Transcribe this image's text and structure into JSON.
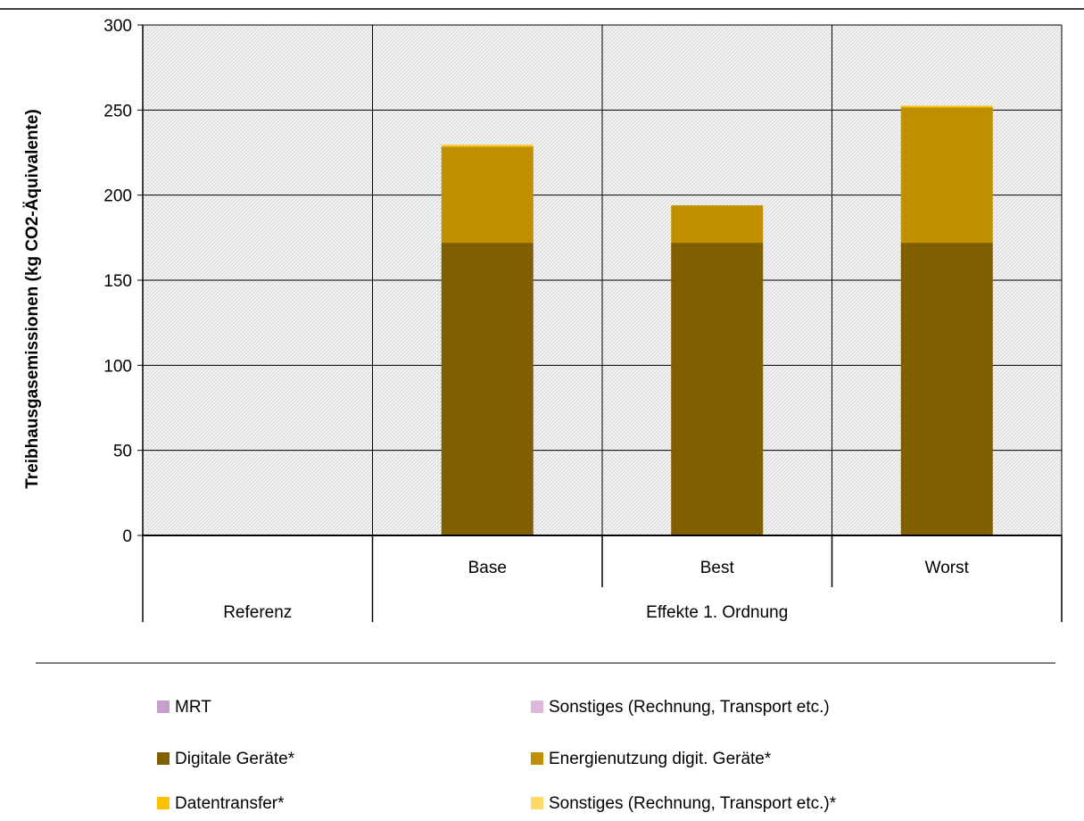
{
  "chart_data": {
    "type": "bar",
    "stacked": true,
    "title": "",
    "xlabel": "",
    "ylabel": "Treibhausgasemissionen (kg CO2-Äquivalente)",
    "ylim": [
      0,
      300
    ],
    "yticks": [
      0,
      50,
      100,
      150,
      200,
      250,
      300
    ],
    "grid": true,
    "legend_position": "bottom",
    "category_groups": [
      {
        "label": "Referenz",
        "categories": [
          ""
        ]
      },
      {
        "label": "Effekte 1. Ordnung",
        "categories": [
          "Base",
          "Best",
          "Worst"
        ]
      }
    ],
    "categories": [
      "",
      "Base",
      "Best",
      "Worst"
    ],
    "series": [
      {
        "name": "MRT",
        "color": "#c79fc9",
        "values": [
          0,
          0,
          0,
          0
        ]
      },
      {
        "name": "Sonstiges (Rechnung, Transport etc.)",
        "color": "#dcb8dc",
        "values": [
          0,
          0,
          0,
          0
        ]
      },
      {
        "name": "Digitale Geräte*",
        "color": "#7f5f00",
        "values": [
          0,
          172,
          172,
          172
        ]
      },
      {
        "name": "Energienutzung digit. Geräte*",
        "color": "#bf8f00",
        "values": [
          0,
          56.5,
          22,
          79.5
        ]
      },
      {
        "name": "Datentransfer*",
        "color": "#ffc000",
        "values": [
          0,
          1,
          0,
          1
        ]
      },
      {
        "name": "Sonstiges (Rechnung, Transport etc.)*",
        "color": "#ffd966",
        "values": [
          0,
          0,
          0,
          0
        ]
      }
    ]
  }
}
